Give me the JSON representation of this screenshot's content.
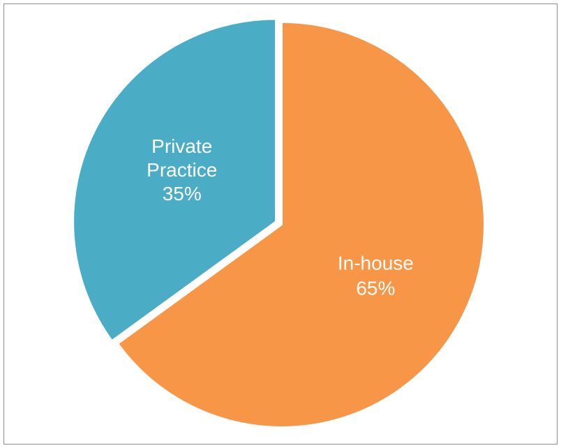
{
  "chart_data": {
    "type": "pie",
    "title": "",
    "slices": [
      {
        "label": "In-house",
        "value_label": "65%",
        "value": 65,
        "color": "#F79646",
        "exploded": false
      },
      {
        "label": "Private Practice",
        "value_label": "35%",
        "value": 35,
        "color": "#4BACC6",
        "exploded": true
      }
    ],
    "start_angle_deg": 0,
    "direction": "clockwise",
    "legend": "none",
    "data_labels": "inside"
  }
}
